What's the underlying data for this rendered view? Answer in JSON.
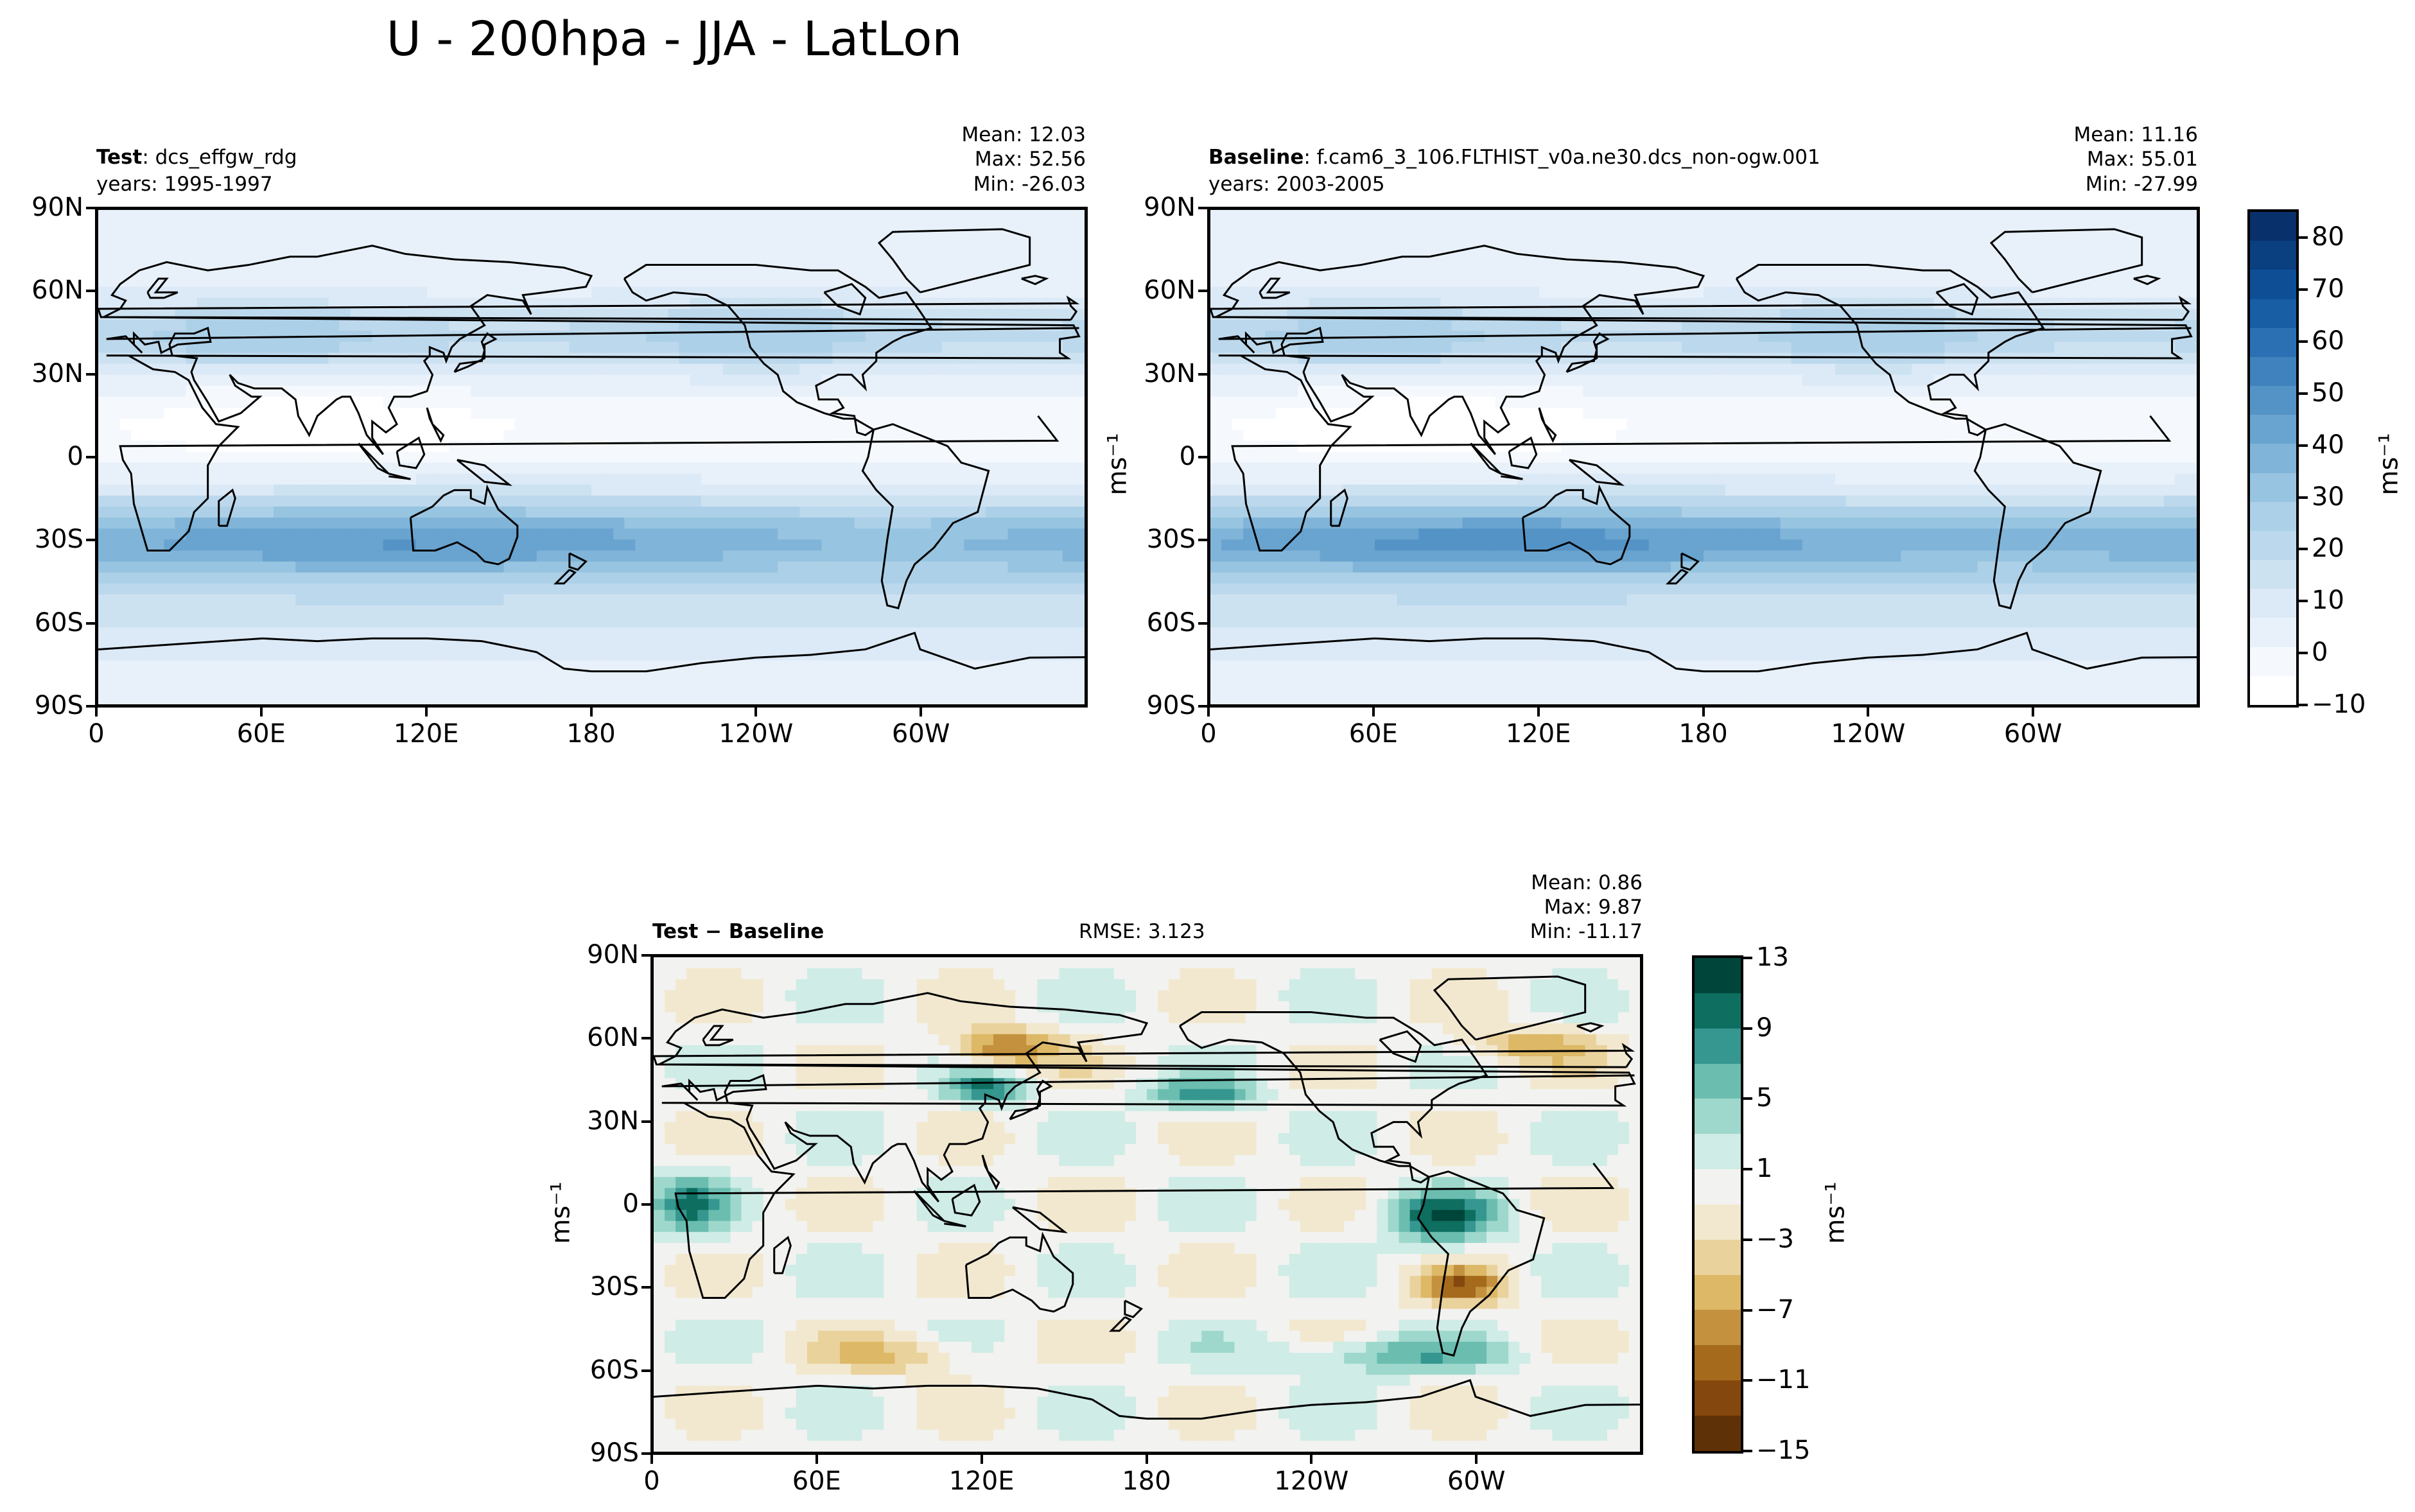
{
  "figure_title": "U - 200hpa - JJA - LatLon",
  "unit_label": "ms⁻¹",
  "lat_ticks": [
    "90N",
    "60N",
    "30N",
    "0",
    "30S",
    "60S",
    "90S"
  ],
  "lon_ticks": [
    "0",
    "60E",
    "120E",
    "180",
    "120W",
    "60W"
  ],
  "panels": {
    "test": {
      "label": "Test",
      "name": ": dcs_effgw_rdg",
      "years": "years: 1995-1997",
      "mean": "Mean: 12.03",
      "max": "Max: 52.56",
      "min": "Min: -26.03"
    },
    "baseline": {
      "label": "Baseline",
      "name": ": f.cam6_3_106.FLTHIST_v0a.ne30.dcs_non-ogw.001",
      "years": "years: 2003-2005",
      "mean": "Mean: 11.16",
      "max": "Max: 55.01",
      "min": "Min: -27.99"
    },
    "diff": {
      "label": "Test − Baseline",
      "rmse": "RMSE: 3.123",
      "mean": "Mean:  0.86",
      "max": "Max:  9.87",
      "min": "Min: -11.17"
    }
  },
  "colorbars": {
    "main": {
      "ticks": [
        "80",
        "70",
        "60",
        "50",
        "40",
        "30",
        "20",
        "10",
        "0",
        "−10"
      ],
      "colors": [
        "#08306b",
        "#0a3f80",
        "#0d4e94",
        "#175ea5",
        "#2a70b3",
        "#3f82bd",
        "#5493c6",
        "#69a3cf",
        "#80b4d8",
        "#97c4e0",
        "#acd0e7",
        "#bcd8ec",
        "#cde2f1",
        "#dce9f6",
        "#e8f1fa",
        "#f5f9fd",
        "#ffffff"
      ]
    },
    "diff": {
      "ticks": [
        "13",
        "9",
        "5",
        "1",
        "−3",
        "−7",
        "−11",
        "−15"
      ],
      "colors": [
        "#00453a",
        "#0e6e60",
        "#35978f",
        "#6bbdb0",
        "#9ed8cc",
        "#cfece6",
        "#f2f2f0",
        "#f2e8cf",
        "#ead29c",
        "#ddb866",
        "#c4923f",
        "#a56a1c",
        "#84470d",
        "#5e3106"
      ]
    }
  },
  "chart_data": [
    {
      "type": "heatmap",
      "title": "Test : dcs_effgw_rdg",
      "x_ticks": [
        "0",
        "60E",
        "120E",
        "180",
        "120W",
        "60W"
      ],
      "y_ticks": [
        "90N",
        "60N",
        "30N",
        "0",
        "30S",
        "60S",
        "90S"
      ],
      "colorbar_range": [
        -10,
        85
      ],
      "zonal_mean_by_lat": {
        "lat": [
          90,
          60,
          45,
          30,
          15,
          0,
          -15,
          -30,
          -45,
          -60,
          -75,
          -90
        ],
        "u": [
          2,
          10,
          22,
          12,
          2,
          -2,
          8,
          35,
          30,
          25,
          10,
          0
        ]
      }
    },
    {
      "type": "heatmap",
      "title": "Baseline : f.cam6_3_106.FLTHIST_v0a.ne30.dcs_non-ogw.001",
      "x_ticks": [
        "0",
        "60E",
        "120E",
        "180",
        "120W",
        "60W"
      ],
      "y_ticks": [
        "90N",
        "60N",
        "30N",
        "0",
        "30S",
        "60S",
        "90S"
      ],
      "colorbar_range": [
        -10,
        85
      ],
      "zonal_mean_by_lat": {
        "lat": [
          90,
          60,
          45,
          30,
          15,
          0,
          -15,
          -30,
          -45,
          -60,
          -75,
          -90
        ],
        "u": [
          2,
          9,
          20,
          11,
          2,
          -2,
          8,
          37,
          30,
          25,
          10,
          0
        ]
      }
    },
    {
      "type": "heatmap",
      "title": "Test − Baseline",
      "x_ticks": [
        "0",
        "60E",
        "120E",
        "180",
        "120W",
        "60W"
      ],
      "y_ticks": [
        "90N",
        "60N",
        "30N",
        "0",
        "30S",
        "60S",
        "90S"
      ],
      "colorbar_range": [
        -15,
        13
      ]
    }
  ]
}
